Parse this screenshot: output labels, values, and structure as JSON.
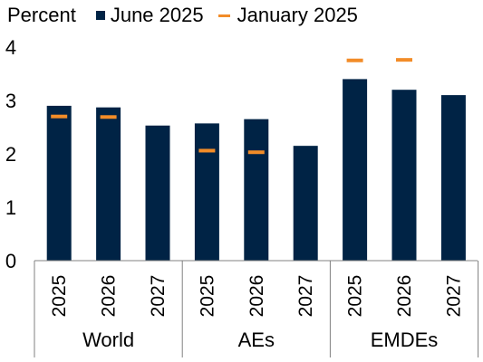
{
  "chart_data": {
    "type": "bar",
    "unit_label": "Percent",
    "groups": [
      {
        "label": "World",
        "categories": [
          "2025",
          "2026",
          "2027"
        ]
      },
      {
        "label": "AEs",
        "categories": [
          "2025",
          "2026",
          "2027"
        ]
      },
      {
        "label": "EMDEs",
        "categories": [
          "2025",
          "2026",
          "2027"
        ]
      }
    ],
    "series": [
      {
        "name": "June 2025",
        "kind": "bar",
        "color": "#002345",
        "values": [
          2.9,
          2.87,
          2.53,
          2.57,
          2.65,
          2.15,
          3.4,
          3.2,
          3.1
        ]
      },
      {
        "name": "January 2025",
        "kind": "marker",
        "color": "#F28C28",
        "values": [
          2.7,
          2.69,
          null,
          2.06,
          2.03,
          null,
          3.75,
          3.76,
          null
        ]
      }
    ],
    "ylim": [
      0,
      4
    ],
    "yticks": [
      "0",
      "1",
      "2",
      "3",
      "4"
    ],
    "grid": false,
    "legend_position": "top"
  }
}
